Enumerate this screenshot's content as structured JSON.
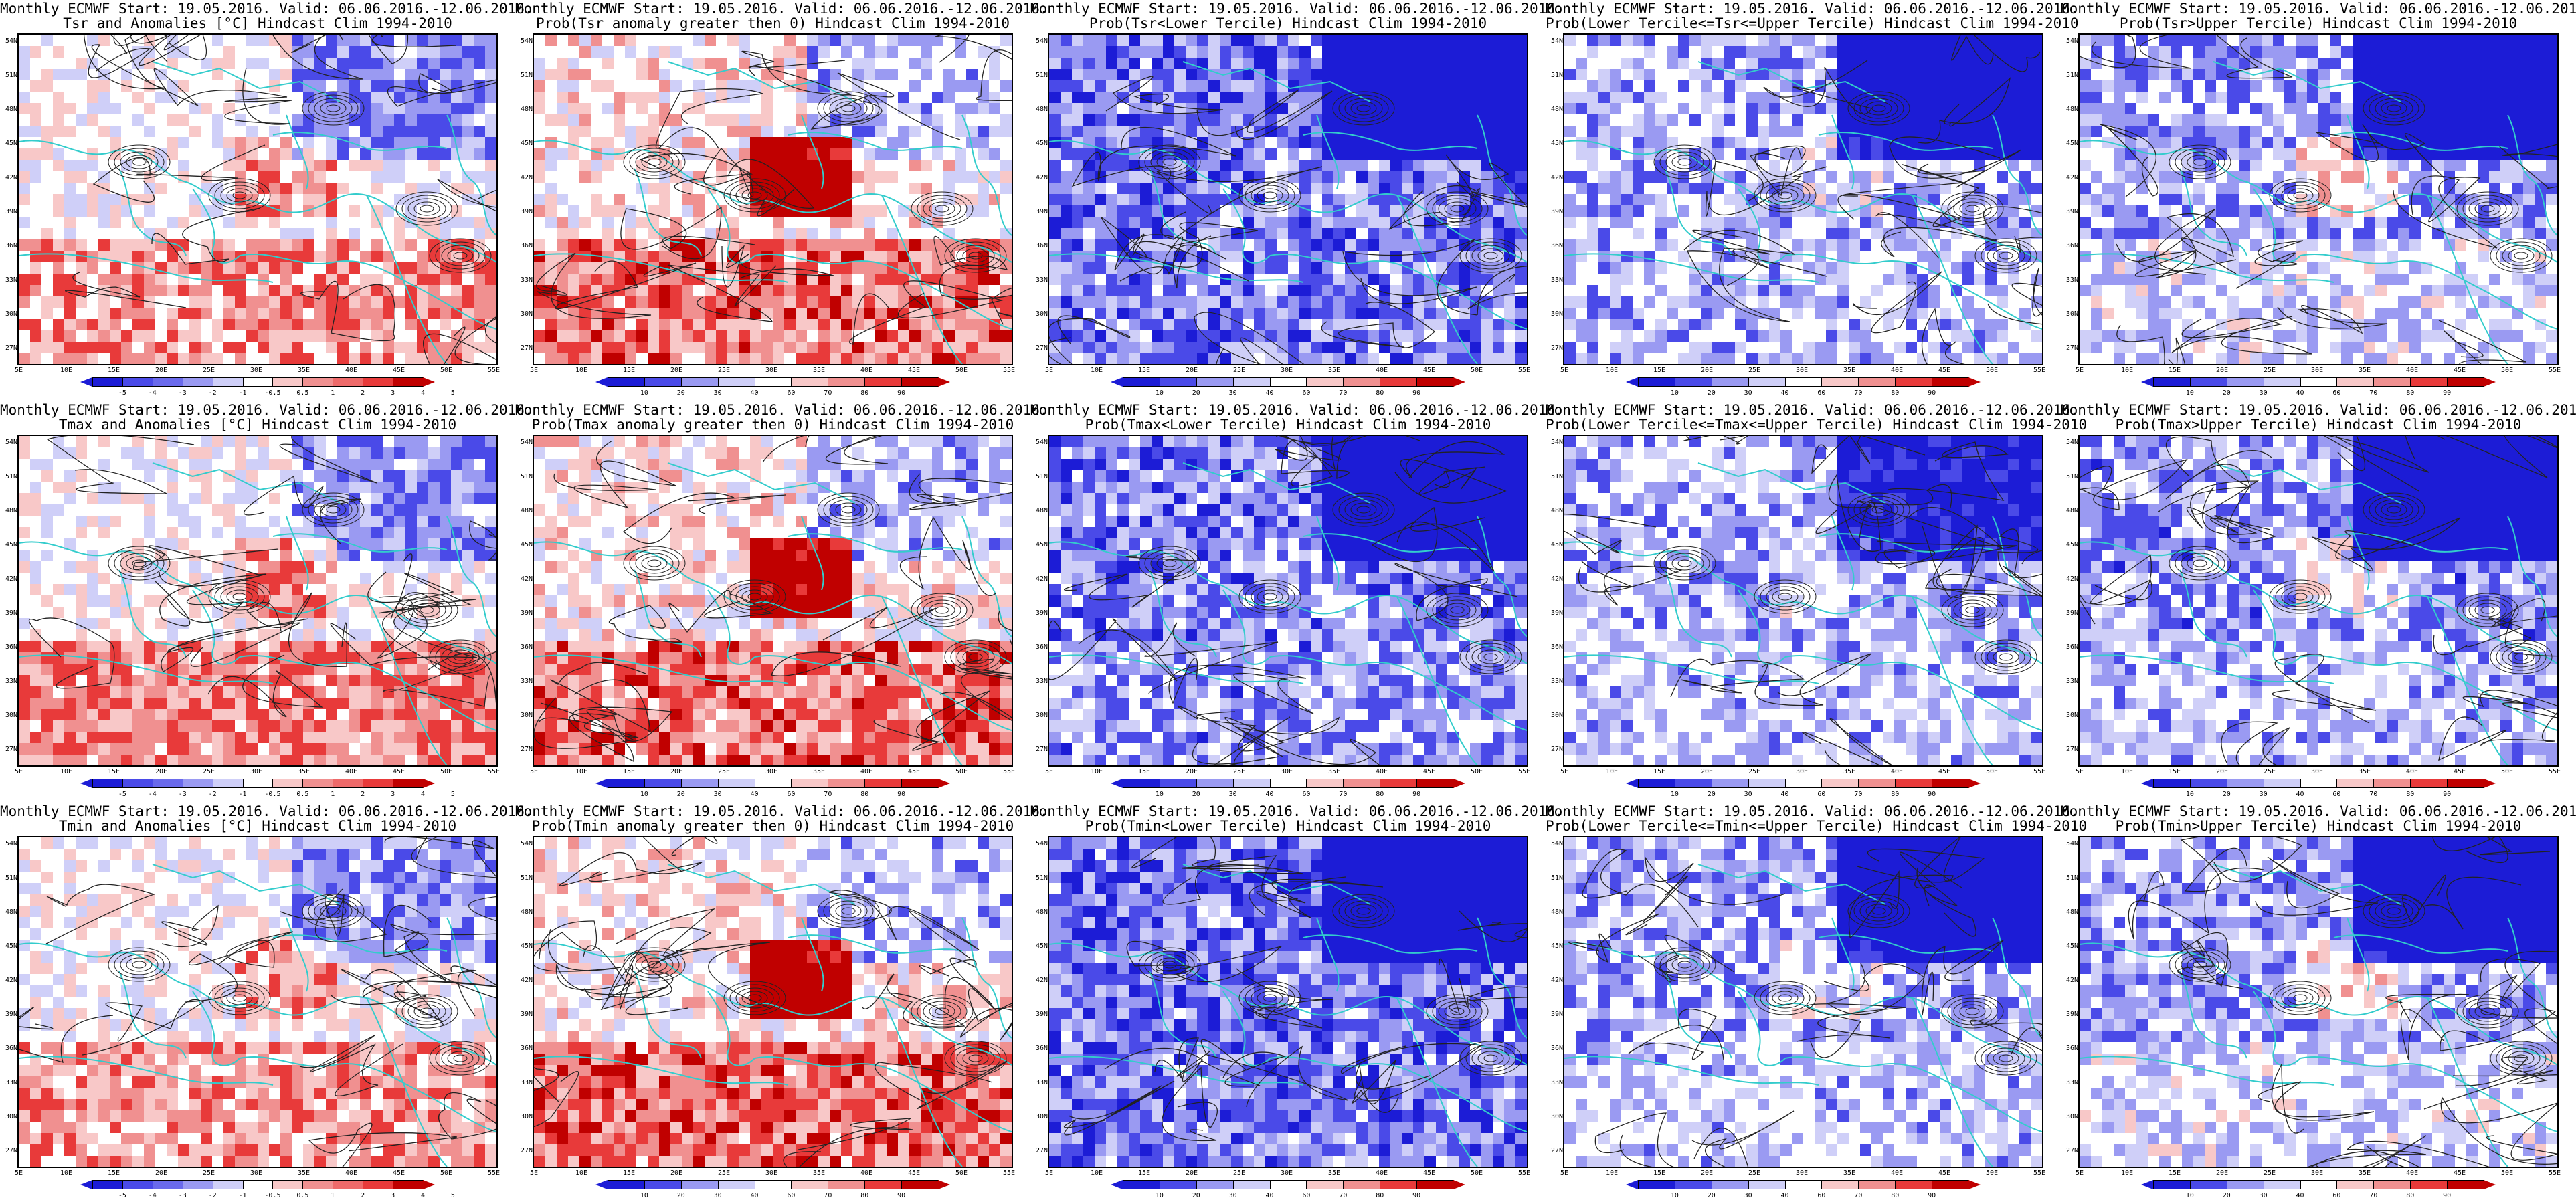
{
  "titles_line1": "Monthly ECMWF Start: 19.05.2016. Valid: 06.06.2016.-12.06.2016.",
  "rows": [
    {
      "panels": [
        {
          "t2": "Tsr and Anomalies [°C] Hindcast Clim 1994-2010",
          "kind": "anom",
          "red": 0.3,
          "blue": 0.25,
          "contour": "22",
          "scale": "anom"
        },
        {
          "t2": "Prob(Tsr anomaly greater then 0) Hindcast Clim 1994-2010",
          "kind": "prob",
          "red": 0.6,
          "blue": 0.2,
          "scale": "prob"
        },
        {
          "t2": "Prob(Tsr<Lower Tercile) Hindcast Clim 1994-2010",
          "kind": "prob",
          "red": 0.08,
          "blue": 0.85,
          "scale": "prob"
        },
        {
          "t2": "Prob(Lower Tercile<=Tsr<=Upper Tercile) Hindcast Clim 1994-2010",
          "kind": "prob",
          "red": 0.1,
          "blue": 0.55,
          "scale": "prob"
        },
        {
          "t2": "Prob(Tsr>Upper Tercile) Hindcast Clim 1994-2010",
          "kind": "prob",
          "red": 0.25,
          "blue": 0.65,
          "scale": "prob"
        }
      ]
    },
    {
      "panels": [
        {
          "t2": "Tmax and Anomalies [°C] Hindcast Clim 1994-2010",
          "kind": "anom",
          "red": 0.35,
          "blue": 0.25,
          "scale": "anom"
        },
        {
          "t2": "Prob(Tmax anomaly greater then 0) Hindcast Clim 1994-2010",
          "kind": "prob",
          "red": 0.6,
          "blue": 0.22,
          "scale": "prob"
        },
        {
          "t2": "Prob(Tmax<Lower Tercile) Hindcast Clim 1994-2010",
          "kind": "prob",
          "red": 0.12,
          "blue": 0.8,
          "scale": "prob"
        },
        {
          "t2": "Prob(Lower Tercile<=Tmax<=Upper Tercile) Hindcast Clim 1994-2010",
          "kind": "prob",
          "red": 0.06,
          "blue": 0.45,
          "scale": "prob"
        },
        {
          "t2": "Prob(Tmax>Upper Tercile) Hindcast Clim 1994-2010",
          "kind": "prob",
          "red": 0.2,
          "blue": 0.7,
          "scale": "prob"
        }
      ]
    },
    {
      "panels": [
        {
          "t2": "Tmin and Anomalies [°C] Hindcast Clim 1994-2010",
          "kind": "anom",
          "red": 0.28,
          "blue": 0.25,
          "scale": "anom"
        },
        {
          "t2": "Prob(Tmin anomaly greater then 0) Hindcast Clim 1994-2010",
          "kind": "prob",
          "red": 0.62,
          "blue": 0.2,
          "scale": "prob"
        },
        {
          "t2": "Prob(Tmin<Lower Tercile) Hindcast Clim 1994-2010",
          "kind": "prob",
          "red": 0.05,
          "blue": 0.85,
          "scale": "prob"
        },
        {
          "t2": "Prob(Lower Tercile<=Tmin<=Upper Tercile) Hindcast Clim 1994-2010",
          "kind": "prob",
          "red": 0.12,
          "blue": 0.55,
          "scale": "prob"
        },
        {
          "t2": "Prob(Tmin>Upper Tercile) Hindcast Clim 1994-2010",
          "kind": "prob",
          "red": 0.25,
          "blue": 0.65,
          "scale": "prob"
        }
      ]
    }
  ],
  "lat_labels": [
    "54N",
    "51N",
    "48N",
    "45N",
    "42N",
    "39N",
    "36N",
    "33N",
    "30N",
    "27N"
  ],
  "lon_labels": [
    "5E",
    "10E",
    "15E",
    "20E",
    "25E",
    "30E",
    "35E",
    "40E",
    "45E",
    "50E",
    "55E"
  ],
  "scales": {
    "anom": [
      "-5",
      "-4",
      "-3",
      "-2",
      "-1",
      "-0.5",
      "0.5",
      "1",
      "2",
      "3",
      "4",
      "5"
    ],
    "prob": [
      "10",
      "20",
      "30",
      "40",
      "60",
      "70",
      "80",
      "90"
    ]
  },
  "colors": {
    "blue_dark": "#1c1cd6",
    "blue_mid": "#4a4ae8",
    "blue_light": "#9a9af2",
    "blue_pale": "#cfcff8",
    "red_pale": "#f8c8c8",
    "red_light": "#f09090",
    "red_mid": "#e83a3a",
    "red_dark": "#c00000",
    "coast": "#33cccc",
    "contour": "#222222"
  }
}
